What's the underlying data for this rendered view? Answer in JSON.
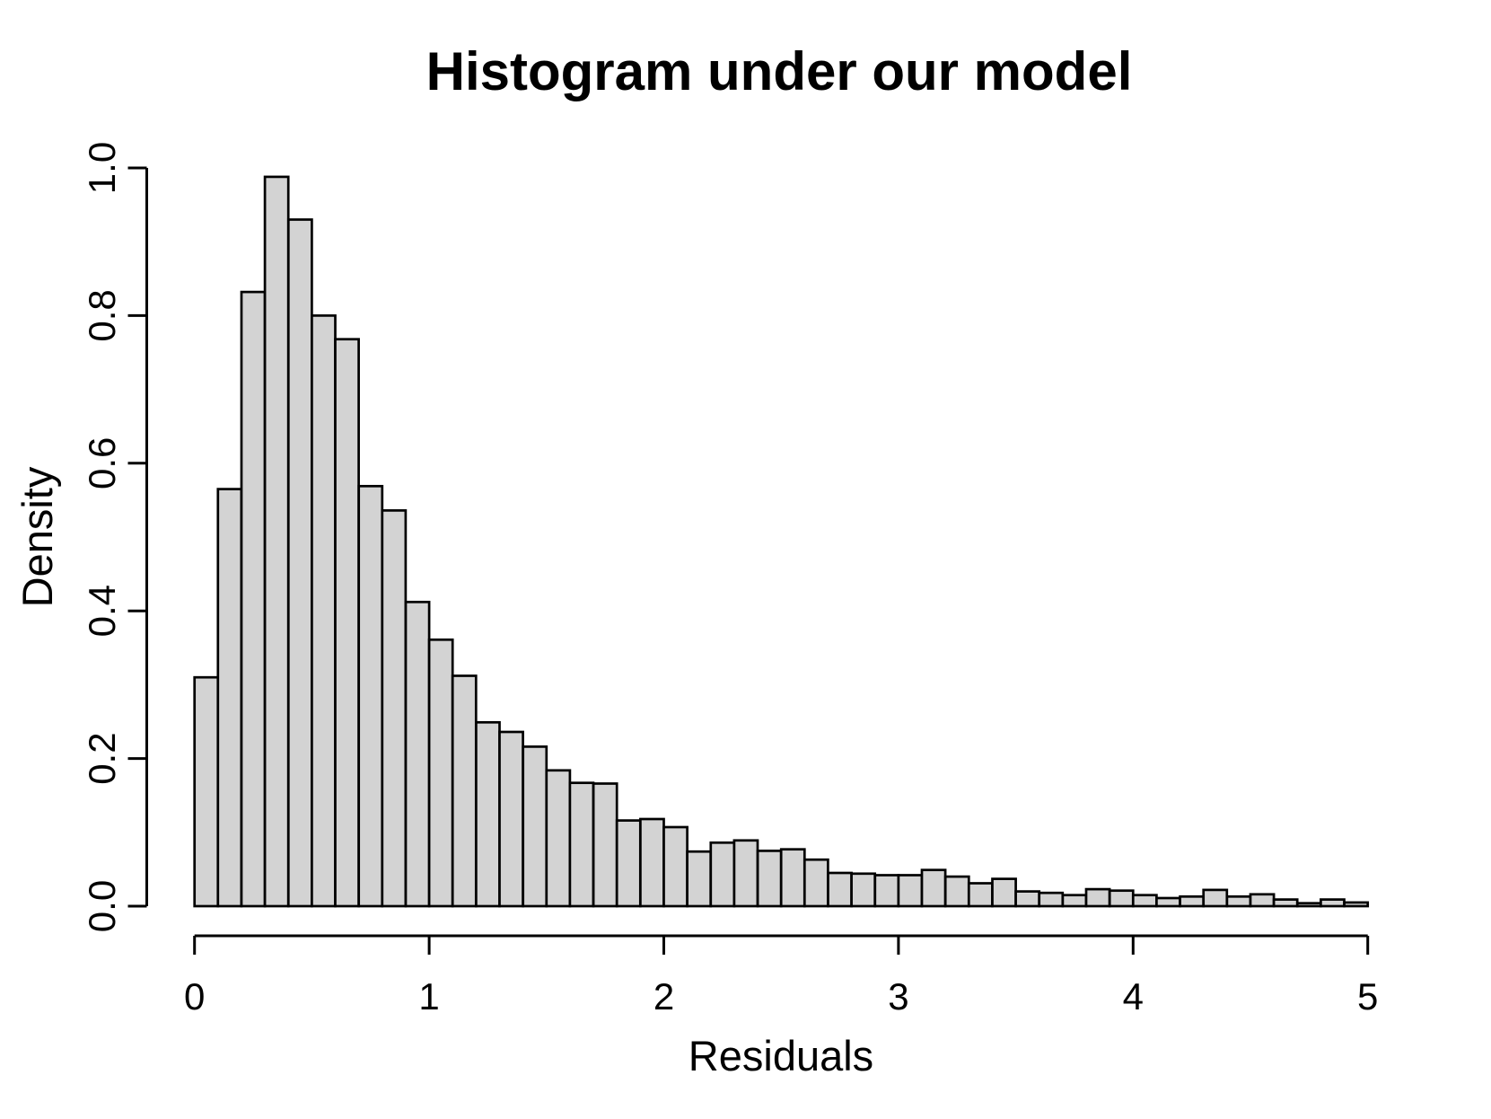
{
  "chart_data": {
    "type": "bar",
    "subtype": "histogram",
    "title": "Histogram under our model",
    "xlabel": "Residuals",
    "ylabel": "Density",
    "xlim": [
      0,
      5
    ],
    "ylim": [
      0.0,
      1.0
    ],
    "x_ticks": [
      "0",
      "1",
      "2",
      "3",
      "4",
      "5"
    ],
    "y_ticks": [
      "0.0",
      "0.2",
      "0.4",
      "0.6",
      "0.8",
      "1.0"
    ],
    "bin_start": 0,
    "bin_width": 0.1,
    "densities": [
      0.31,
      0.565,
      0.832,
      0.988,
      0.93,
      0.8,
      0.768,
      0.569,
      0.536,
      0.412,
      0.361,
      0.312,
      0.249,
      0.236,
      0.216,
      0.184,
      0.167,
      0.166,
      0.116,
      0.118,
      0.107,
      0.074,
      0.086,
      0.089,
      0.075,
      0.077,
      0.063,
      0.045,
      0.044,
      0.042,
      0.042,
      0.049,
      0.04,
      0.031,
      0.037,
      0.02,
      0.018,
      0.015,
      0.023,
      0.021,
      0.015,
      0.011,
      0.013,
      0.022,
      0.013,
      0.016,
      0.009,
      0.004,
      0.009,
      0.005
    ],
    "bar_fill": "#d3d3d3",
    "bar_stroke": "#000000",
    "axis_color": "#000000",
    "background": "#ffffff",
    "grid": false,
    "legend": "none"
  }
}
